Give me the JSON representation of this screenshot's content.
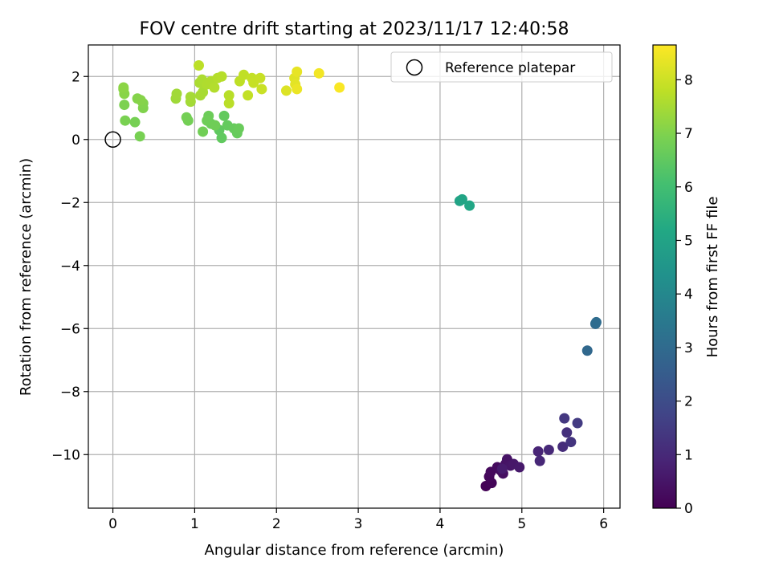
{
  "chart_data": {
    "type": "scatter",
    "title": "FOV centre drift starting at 2023/11/17 12:40:58",
    "xlabel": "Angular distance from reference (arcmin)",
    "ylabel": "Rotation from reference (arcmin)",
    "xlim": [
      -0.3,
      6.2
    ],
    "ylim": [
      -11.7,
      3.0
    ],
    "xticks": [
      0,
      1,
      2,
      3,
      4,
      5,
      6
    ],
    "yticks": [
      -10,
      -8,
      -6,
      -4,
      -2,
      0,
      2
    ],
    "xtick_labels": [
      "0",
      "1",
      "2",
      "3",
      "4",
      "5",
      "6"
    ],
    "ytick_labels": [
      "−10",
      "−8",
      "−6",
      "−4",
      "−2",
      "0",
      "2"
    ],
    "grid": true,
    "legend": {
      "placement": "top-right",
      "entries": [
        "Reference platepar"
      ]
    },
    "reference_point": {
      "name": "Reference platepar",
      "x": 0,
      "y": 0
    },
    "colorbar": {
      "label": "Hours from first FF file",
      "colormap": "viridis",
      "range": [
        0,
        8.65
      ],
      "ticks": [
        0,
        1,
        2,
        3,
        4,
        5,
        6,
        7,
        8
      ],
      "tick_labels": [
        "0",
        "1",
        "2",
        "3",
        "4",
        "5",
        "6",
        "7",
        "8"
      ]
    },
    "points": [
      {
        "x": 4.56,
        "y": -11.0,
        "c": 0.05
      },
      {
        "x": 4.63,
        "y": -10.9,
        "c": 0.1
      },
      {
        "x": 4.6,
        "y": -10.7,
        "c": 0.15
      },
      {
        "x": 4.62,
        "y": -10.55,
        "c": 0.2
      },
      {
        "x": 4.7,
        "y": -10.4,
        "c": 0.25
      },
      {
        "x": 4.74,
        "y": -10.5,
        "c": 0.3
      },
      {
        "x": 4.77,
        "y": -10.6,
        "c": 0.35
      },
      {
        "x": 4.8,
        "y": -10.3,
        "c": 0.4
      },
      {
        "x": 4.82,
        "y": -10.15,
        "c": 0.45
      },
      {
        "x": 4.86,
        "y": -10.35,
        "c": 0.5
      },
      {
        "x": 4.9,
        "y": -10.3,
        "c": 0.55
      },
      {
        "x": 4.97,
        "y": -10.4,
        "c": 0.6
      },
      {
        "x": 4.76,
        "y": -10.45,
        "c": 0.65
      },
      {
        "x": 5.2,
        "y": -9.9,
        "c": 0.9
      },
      {
        "x": 5.22,
        "y": -10.2,
        "c": 0.95
      },
      {
        "x": 5.33,
        "y": -9.85,
        "c": 1.0
      },
      {
        "x": 5.5,
        "y": -9.75,
        "c": 1.1
      },
      {
        "x": 5.55,
        "y": -9.3,
        "c": 1.2
      },
      {
        "x": 5.6,
        "y": -9.6,
        "c": 1.3
      },
      {
        "x": 5.52,
        "y": -8.85,
        "c": 1.4
      },
      {
        "x": 5.68,
        "y": -9.0,
        "c": 1.5
      },
      {
        "x": 5.8,
        "y": -6.7,
        "c": 2.9
      },
      {
        "x": 5.9,
        "y": -5.85,
        "c": 3.0
      },
      {
        "x": 5.91,
        "y": -5.8,
        "c": 3.05
      },
      {
        "x": 4.24,
        "y": -1.95,
        "c": 5.0
      },
      {
        "x": 4.27,
        "y": -1.9,
        "c": 5.05
      },
      {
        "x": 4.36,
        "y": -2.1,
        "c": 5.1
      },
      {
        "x": 1.3,
        "y": 0.3,
        "c": 6.5
      },
      {
        "x": 1.33,
        "y": 0.05,
        "c": 6.52
      },
      {
        "x": 1.36,
        "y": 0.75,
        "c": 6.55
      },
      {
        "x": 1.4,
        "y": 0.45,
        "c": 6.57
      },
      {
        "x": 1.48,
        "y": 0.35,
        "c": 6.6
      },
      {
        "x": 1.52,
        "y": 0.2,
        "c": 6.62
      },
      {
        "x": 1.54,
        "y": 0.35,
        "c": 6.65
      },
      {
        "x": 1.2,
        "y": 0.5,
        "c": 6.67
      },
      {
        "x": 1.17,
        "y": 0.75,
        "c": 6.7
      },
      {
        "x": 1.15,
        "y": 0.6,
        "c": 6.72
      },
      {
        "x": 1.25,
        "y": 0.45,
        "c": 6.75
      },
      {
        "x": 1.1,
        "y": 0.25,
        "c": 6.77
      },
      {
        "x": 0.92,
        "y": 0.6,
        "c": 6.8
      },
      {
        "x": 0.9,
        "y": 0.7,
        "c": 6.82
      },
      {
        "x": 0.27,
        "y": 0.55,
        "c": 6.85
      },
      {
        "x": 0.33,
        "y": 0.1,
        "c": 6.87
      },
      {
        "x": 0.15,
        "y": 0.6,
        "c": 6.9
      },
      {
        "x": 0.14,
        "y": 1.1,
        "c": 6.95
      },
      {
        "x": 0.37,
        "y": 1.0,
        "c": 7.0
      },
      {
        "x": 0.37,
        "y": 1.15,
        "c": 7.02
      },
      {
        "x": 0.3,
        "y": 1.3,
        "c": 7.05
      },
      {
        "x": 0.34,
        "y": 1.25,
        "c": 7.07
      },
      {
        "x": 0.14,
        "y": 1.45,
        "c": 7.1
      },
      {
        "x": 0.13,
        "y": 1.6,
        "c": 7.12
      },
      {
        "x": 0.13,
        "y": 1.65,
        "c": 7.15
      },
      {
        "x": 0.77,
        "y": 1.3,
        "c": 7.4
      },
      {
        "x": 0.78,
        "y": 1.45,
        "c": 7.42
      },
      {
        "x": 0.95,
        "y": 1.2,
        "c": 7.45
      },
      {
        "x": 0.95,
        "y": 1.35,
        "c": 7.47
      },
      {
        "x": 1.07,
        "y": 1.4,
        "c": 7.5
      },
      {
        "x": 1.1,
        "y": 1.5,
        "c": 7.52
      },
      {
        "x": 1.06,
        "y": 1.8,
        "c": 7.55
      },
      {
        "x": 1.09,
        "y": 1.9,
        "c": 7.57
      },
      {
        "x": 1.15,
        "y": 1.75,
        "c": 7.6
      },
      {
        "x": 1.2,
        "y": 1.85,
        "c": 7.62
      },
      {
        "x": 1.24,
        "y": 1.65,
        "c": 7.65
      },
      {
        "x": 1.28,
        "y": 1.95,
        "c": 7.67
      },
      {
        "x": 1.33,
        "y": 2.0,
        "c": 7.7
      },
      {
        "x": 1.42,
        "y": 1.4,
        "c": 7.72
      },
      {
        "x": 1.42,
        "y": 1.15,
        "c": 7.75
      },
      {
        "x": 1.05,
        "y": 2.35,
        "c": 7.77
      },
      {
        "x": 1.55,
        "y": 1.85,
        "c": 7.8
      },
      {
        "x": 1.6,
        "y": 2.05,
        "c": 7.82
      },
      {
        "x": 1.65,
        "y": 1.4,
        "c": 7.85
      },
      {
        "x": 1.7,
        "y": 1.95,
        "c": 7.87
      },
      {
        "x": 1.72,
        "y": 1.8,
        "c": 7.9
      },
      {
        "x": 1.8,
        "y": 1.95,
        "c": 7.92
      },
      {
        "x": 1.82,
        "y": 1.6,
        "c": 7.95
      },
      {
        "x": 2.12,
        "y": 1.55,
        "c": 8.2
      },
      {
        "x": 2.22,
        "y": 1.95,
        "c": 8.25
      },
      {
        "x": 2.23,
        "y": 1.75,
        "c": 8.3
      },
      {
        "x": 2.25,
        "y": 2.15,
        "c": 8.35
      },
      {
        "x": 2.25,
        "y": 1.6,
        "c": 8.4
      },
      {
        "x": 2.52,
        "y": 2.1,
        "c": 8.5
      },
      {
        "x": 2.77,
        "y": 1.65,
        "c": 8.6
      }
    ]
  }
}
